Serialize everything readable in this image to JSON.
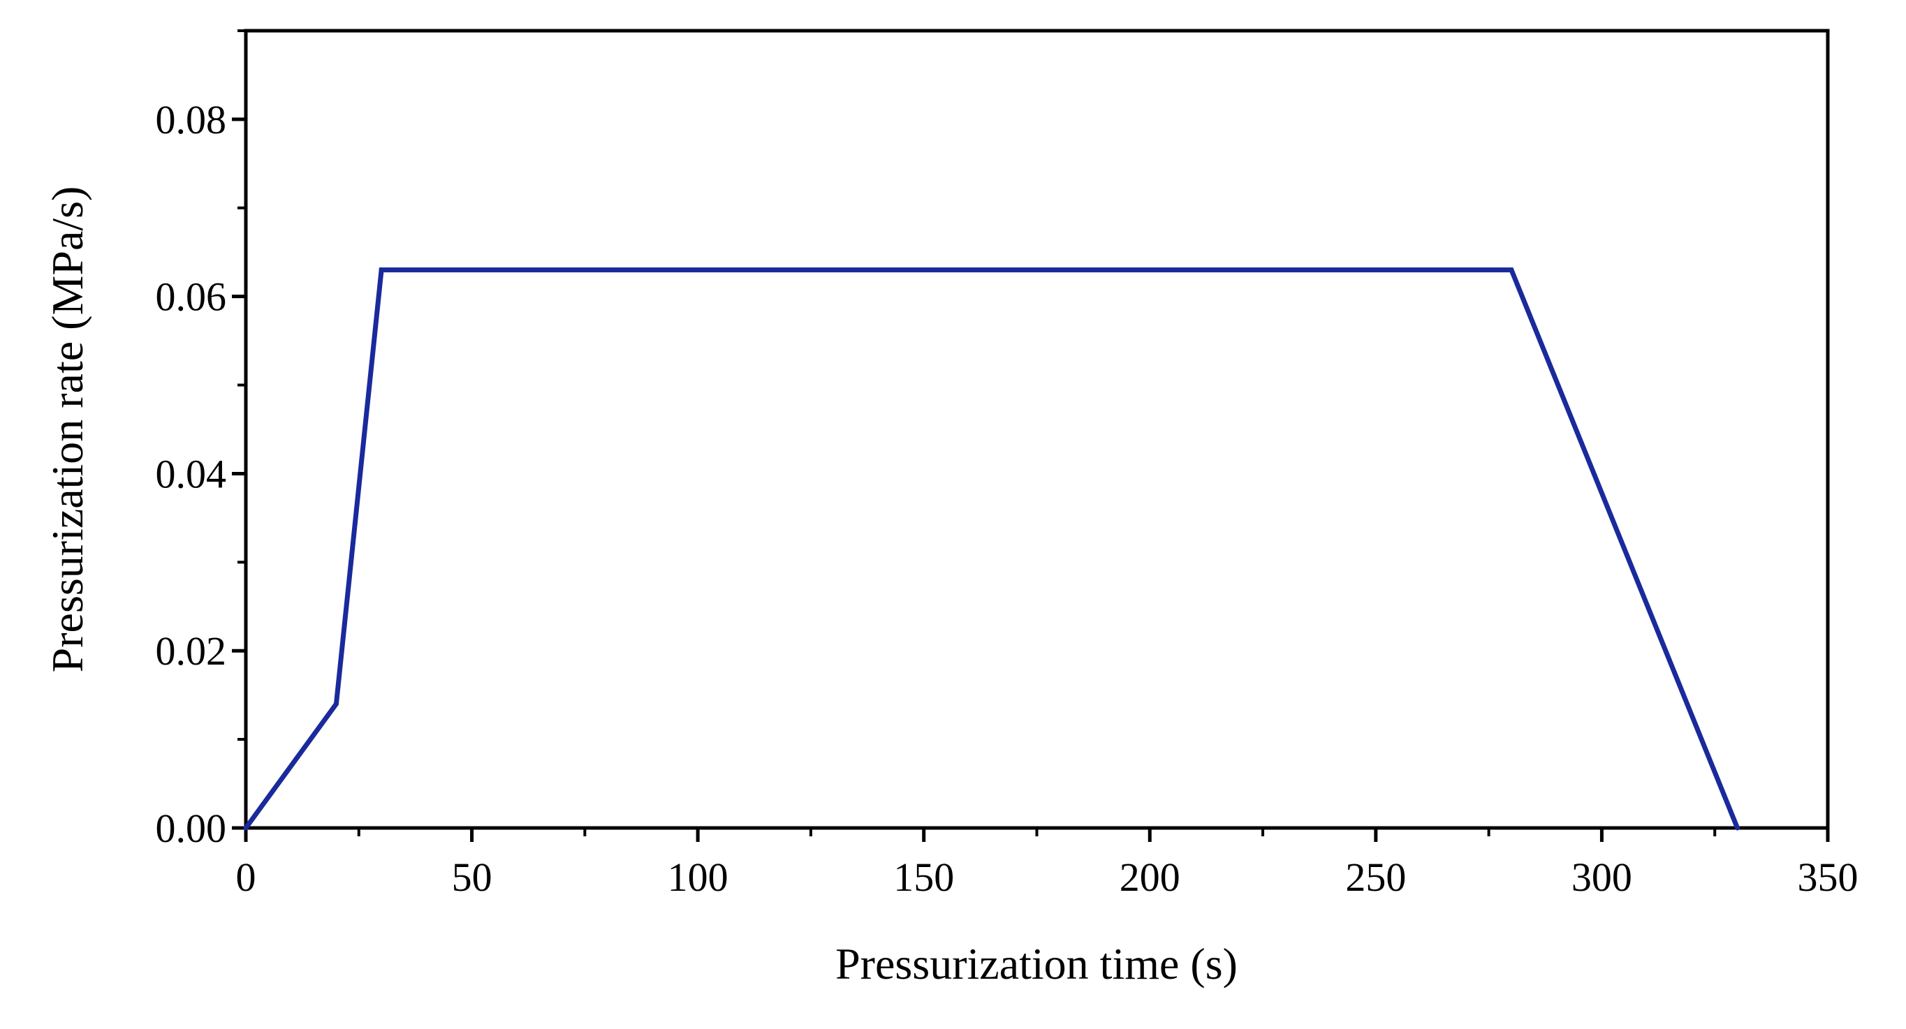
{
  "chart_data": {
    "type": "line",
    "title": "",
    "xlabel": "Pressurization time (s)",
    "ylabel": "Pressurization rate (MPa/s)",
    "xlim": [
      0,
      350
    ],
    "ylim": [
      0,
      0.09
    ],
    "x_ticks": [
      0,
      50,
      100,
      150,
      200,
      250,
      300,
      350
    ],
    "x_tick_labels": [
      "0",
      "50",
      "100",
      "150",
      "200",
      "250",
      "300",
      "350"
    ],
    "y_ticks": [
      0,
      0.02,
      0.04,
      0.06,
      0.08
    ],
    "y_tick_labels": [
      "0.00",
      "0.02",
      "0.04",
      "0.06",
      "0.08"
    ],
    "grid": false,
    "legend": false,
    "series": [
      {
        "color": "#1a2a9c",
        "points": [
          {
            "x": 0,
            "y": 0.0
          },
          {
            "x": 20,
            "y": 0.014
          },
          {
            "x": 30,
            "y": 0.063
          },
          {
            "x": 280,
            "y": 0.063
          },
          {
            "x": 330,
            "y": 0.0
          }
        ]
      }
    ]
  }
}
